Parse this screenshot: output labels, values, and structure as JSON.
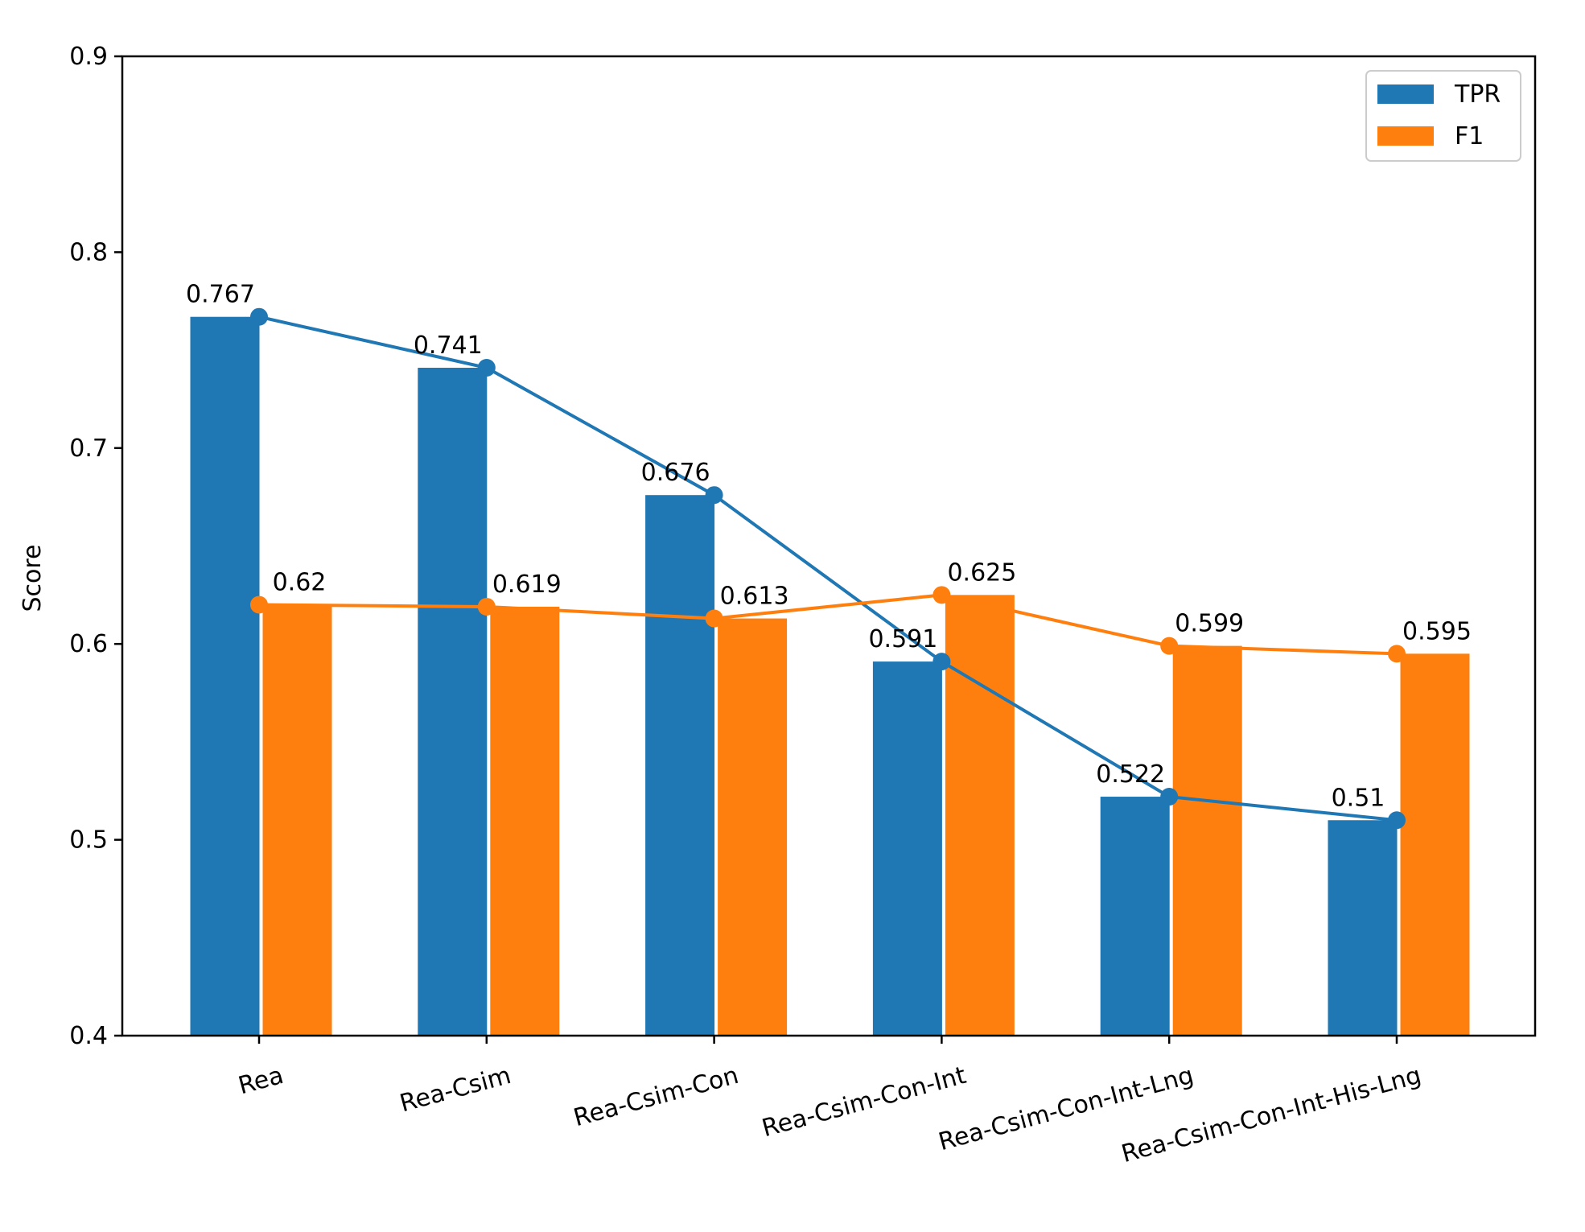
{
  "chart_data": {
    "type": "bar",
    "title": "",
    "xlabel": "",
    "ylabel": "Score",
    "ylim": [
      0.4,
      0.9
    ],
    "yticks": [
      "0.4",
      "0.5",
      "0.6",
      "0.7",
      "0.8",
      "0.9"
    ],
    "categories": [
      "Rea",
      "Rea-Csim",
      "Rea-Csim-Con",
      "Rea-Csim-Con-Int",
      "Rea-Csim-Con-Int-Lng",
      "Rea-Csim-Con-Int-His-Lng"
    ],
    "series": [
      {
        "name": "TPR",
        "color": "#1f77b4",
        "values": [
          0.767,
          0.741,
          0.676,
          0.591,
          0.522,
          0.51
        ],
        "labels": [
          "0.767",
          "0.741",
          "0.676",
          "0.591",
          "0.522",
          "0.51"
        ]
      },
      {
        "name": "F1",
        "color": "#ff7f0e",
        "values": [
          0.62,
          0.619,
          0.613,
          0.625,
          0.599,
          0.595
        ],
        "labels": [
          "0.62",
          "0.619",
          "0.613",
          "0.625",
          "0.599",
          "0.595"
        ]
      }
    ],
    "overlay": "line-with-markers",
    "legend_position": "top-right",
    "grid": false
  }
}
